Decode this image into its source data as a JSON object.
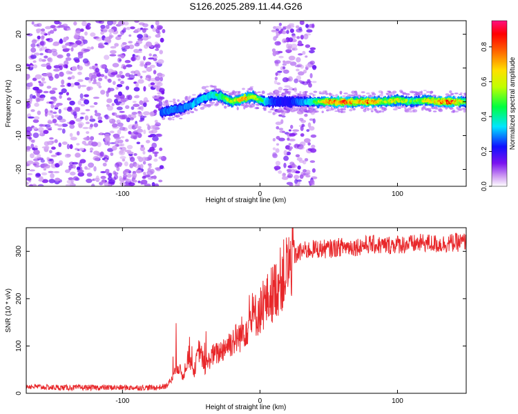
{
  "title": "S126.2025.289.11.44.G26",
  "chart_data": [
    {
      "type": "heatmap",
      "title": "S126.2025.289.11.44.G26",
      "xlabel": "Height of straight line (km)",
      "ylabel": "Frequency (Hz)",
      "xlim": [
        -170,
        150
      ],
      "ylim": [
        -25,
        24
      ],
      "xticks": [
        -100,
        0,
        100
      ],
      "yticks": [
        -20,
        -10,
        0,
        10,
        20
      ],
      "colorbar": {
        "label": "Normalized spectral amplitude",
        "range": [
          0.0,
          0.95
        ],
        "ticks": [
          0.0,
          0.2,
          0.4,
          0.6,
          0.8
        ]
      },
      "noise_regions_km": [
        [
          -170,
          -70
        ],
        [
          10,
          40
        ]
      ],
      "ridge": {
        "x": [
          -72,
          -65,
          -58,
          -50,
          -42,
          -35,
          -28,
          -20,
          -12,
          -5,
          0,
          5,
          10,
          20,
          30,
          40,
          50,
          60,
          70,
          80,
          90,
          100,
          110,
          120,
          130,
          140,
          150
        ],
        "freq": [
          -3,
          -2.5,
          -2,
          -1,
          1,
          2,
          1.5,
          0,
          1,
          1.5,
          0.5,
          0,
          0,
          0,
          0,
          0,
          0,
          0,
          0,
          0,
          0,
          0.5,
          0,
          0.5,
          0,
          0,
          0
        ],
        "amplitude": [
          0.25,
          0.3,
          0.25,
          0.35,
          0.4,
          0.45,
          0.5,
          0.6,
          0.8,
          0.6,
          0.5,
          0.4,
          0.2,
          0.15,
          0.3,
          0.5,
          0.8,
          0.9,
          0.7,
          0.85,
          0.6,
          0.7,
          0.5,
          0.65,
          0.8,
          0.9,
          0.5
        ]
      }
    },
    {
      "type": "line",
      "xlabel": "Height of straight line (km)",
      "ylabel": "SNR (10 * v/v)",
      "xlim": [
        -170,
        150
      ],
      "ylim": [
        0,
        350
      ],
      "xticks": [
        -100,
        0,
        100
      ],
      "yticks": [
        0,
        100,
        200,
        300
      ],
      "color": "#e8272a",
      "series": [
        {
          "name": "SNR",
          "x": [
            -170,
            -150,
            -130,
            -110,
            -90,
            -75,
            -68,
            -64,
            -60,
            -56,
            -52,
            -48,
            -44,
            -40,
            -35,
            -30,
            -25,
            -20,
            -15,
            -10,
            -5,
            0,
            5,
            10,
            15,
            20,
            25,
            30,
            40,
            50,
            60,
            70,
            80,
            90,
            100,
            110,
            120,
            130,
            140,
            150
          ],
          "y": [
            15,
            12,
            12,
            12,
            12,
            12,
            15,
            30,
            60,
            35,
            80,
            45,
            95,
            55,
            80,
            85,
            100,
            110,
            120,
            140,
            160,
            175,
            195,
            215,
            240,
            265,
            290,
            300,
            305,
            305,
            310,
            310,
            315,
            312,
            315,
            315,
            318,
            315,
            318,
            320
          ]
        }
      ]
    }
  ]
}
